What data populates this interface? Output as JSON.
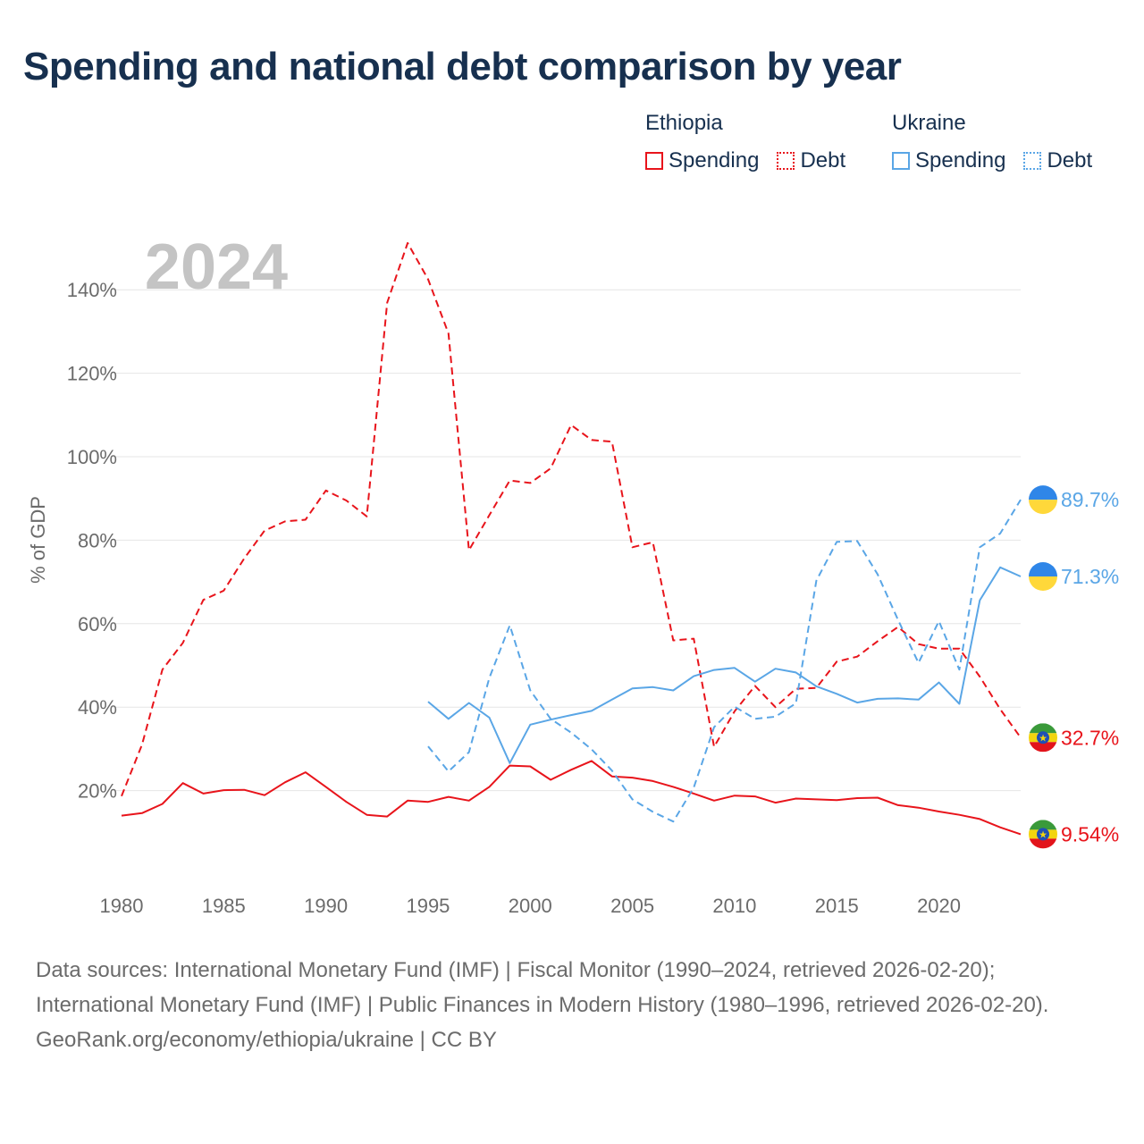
{
  "title": "Spending and national debt comparison by year",
  "legend": {
    "groups": [
      {
        "name": "Ethiopia",
        "spending_label": "Spending",
        "debt_label": "Debt",
        "color": "#e8141b"
      },
      {
        "name": "Ukraine",
        "spending_label": "Spending",
        "debt_label": "Debt",
        "color": "#5aa6e6"
      }
    ]
  },
  "chart_data": {
    "type": "line",
    "title": "Spending and national debt comparison by year",
    "watermark_year": "2024",
    "xlabel": "",
    "ylabel": "% of GDP",
    "xlim": [
      1980,
      2024
    ],
    "ylim": [
      0,
      150
    ],
    "x_ticks": [
      1980,
      1985,
      1990,
      1995,
      2000,
      2005,
      2010,
      2015,
      2020
    ],
    "y_ticks": [
      20,
      40,
      60,
      80,
      100,
      120,
      140
    ],
    "y_tick_labels": [
      "20%",
      "40%",
      "60%",
      "80%",
      "100%",
      "120%",
      "140%"
    ],
    "grid": true,
    "series": [
      {
        "name": "Ethiopia Spending",
        "country": "Ethiopia",
        "measure": "Spending",
        "color": "#e8141b",
        "style": "solid",
        "end_label": "9.54%",
        "x": [
          1980,
          1981,
          1982,
          1983,
          1984,
          1985,
          1986,
          1987,
          1988,
          1989,
          1990,
          1991,
          1992,
          1993,
          1994,
          1995,
          1996,
          1997,
          1998,
          1999,
          2000,
          2001,
          2002,
          2003,
          2004,
          2005,
          2006,
          2007,
          2008,
          2009,
          2010,
          2011,
          2012,
          2013,
          2014,
          2015,
          2016,
          2017,
          2018,
          2019,
          2020,
          2021,
          2022,
          2023,
          2024
        ],
        "values": [
          14.0,
          14.6,
          16.8,
          21.8,
          19.3,
          20.1,
          20.2,
          18.9,
          22.0,
          24.4,
          20.9,
          17.3,
          14.2,
          13.8,
          17.6,
          17.3,
          18.5,
          17.6,
          20.9,
          26.0,
          25.8,
          22.6,
          25.0,
          27.1,
          23.4,
          23.1,
          22.3,
          20.9,
          19.3,
          17.6,
          18.8,
          18.6,
          17.1,
          18.1,
          17.9,
          17.7,
          18.2,
          18.3,
          16.5,
          15.9,
          15.0,
          14.2,
          13.2,
          11.2,
          9.54
        ]
      },
      {
        "name": "Ethiopia Debt",
        "country": "Ethiopia",
        "measure": "Debt",
        "color": "#e8141b",
        "style": "dashed",
        "end_label": "32.7%",
        "x": [
          1980,
          1981,
          1982,
          1983,
          1984,
          1985,
          1986,
          1987,
          1988,
          1989,
          1990,
          1991,
          1992,
          1993,
          1994,
          1995,
          1996,
          1997,
          1998,
          1999,
          2000,
          2001,
          2002,
          2003,
          2004,
          2005,
          2006,
          2007,
          2008,
          2009,
          2010,
          2011,
          2012,
          2013,
          2014,
          2015,
          2016,
          2017,
          2018,
          2019,
          2020,
          2021,
          2022,
          2023,
          2024
        ],
        "values": [
          18.7,
          31.0,
          49.0,
          55.4,
          65.7,
          67.9,
          75.6,
          82.3,
          84.5,
          84.9,
          91.9,
          89.5,
          85.7,
          136.9,
          151.2,
          142.5,
          129.5,
          77.6,
          86.0,
          94.3,
          93.7,
          97.2,
          107.6,
          104.0,
          103.6,
          78.3,
          79.5,
          56.0,
          56.4,
          30.5,
          39.0,
          45.1,
          40.0,
          44.4,
          44.6,
          50.9,
          52.1,
          55.8,
          59.2,
          55.1,
          54.0,
          54.0,
          47.3,
          39.5,
          32.7
        ]
      },
      {
        "name": "Ukraine Spending",
        "country": "Ukraine",
        "measure": "Spending",
        "color": "#5aa6e6",
        "style": "solid",
        "end_label": "71.3%",
        "x": [
          1995,
          1996,
          1997,
          1998,
          1999,
          2000,
          2001,
          2002,
          2003,
          2004,
          2005,
          2006,
          2007,
          2008,
          2009,
          2010,
          2011,
          2012,
          2013,
          2014,
          2015,
          2016,
          2017,
          2018,
          2019,
          2020,
          2021,
          2022,
          2023,
          2024
        ],
        "values": [
          41.3,
          37.2,
          41.0,
          37.5,
          26.6,
          35.8,
          37.0,
          38.1,
          39.1,
          41.8,
          44.5,
          44.8,
          44.0,
          47.4,
          48.9,
          49.4,
          46.1,
          49.2,
          48.3,
          45.0,
          43.2,
          41.1,
          42.0,
          42.1,
          41.8,
          45.9,
          40.8,
          65.6,
          73.5,
          71.3
        ]
      },
      {
        "name": "Ukraine Debt",
        "country": "Ukraine",
        "measure": "Debt",
        "color": "#5aa6e6",
        "style": "dashed",
        "end_label": "89.7%",
        "x": [
          1995,
          1996,
          1997,
          1998,
          1999,
          2000,
          2001,
          2002,
          2003,
          2004,
          2005,
          2006,
          2007,
          2008,
          2009,
          2010,
          2011,
          2012,
          2013,
          2014,
          2015,
          2016,
          2017,
          2018,
          2019,
          2020,
          2021,
          2022,
          2023,
          2024
        ],
        "values": [
          30.6,
          24.6,
          29.2,
          47.0,
          59.6,
          44.0,
          37.2,
          33.9,
          29.9,
          24.8,
          17.9,
          14.9,
          12.6,
          20.7,
          35.2,
          40.1,
          37.2,
          37.7,
          40.9,
          70.3,
          79.6,
          79.8,
          71.8,
          60.9,
          50.6,
          60.6,
          49.0,
          78.3,
          81.6,
          89.7
        ]
      }
    ]
  },
  "sources": {
    "line1": "Data sources: International Monetary Fund (IMF) | Fiscal Monitor (1990–2024, retrieved 2026-02-20); International Monetary Fund (IMF) | Public Finances in Modern History (1980–1996, retrieved 2026-02-20).",
    "line2": "GeoRank.org/economy/ethiopia/ukraine | CC BY"
  }
}
